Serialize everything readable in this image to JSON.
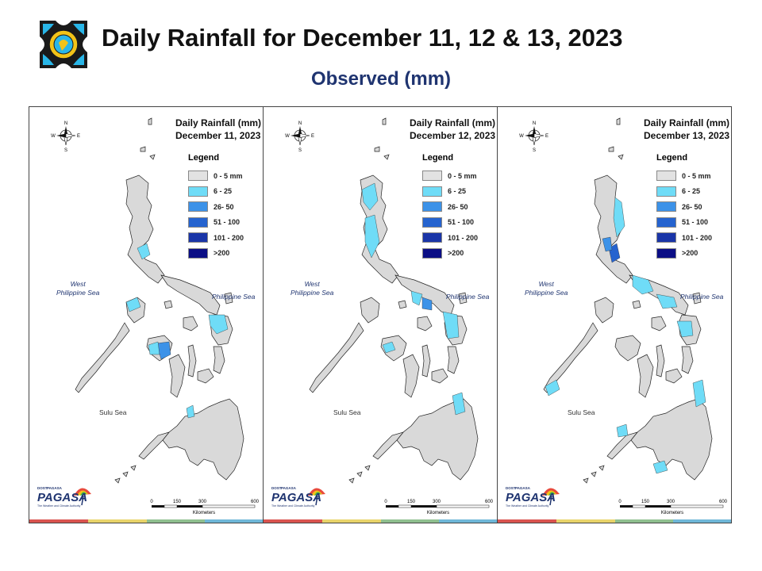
{
  "header": {
    "title": "Daily Rainfall for December 11, 12 & 13, 2023",
    "subtitle": "Observed (mm)"
  },
  "legend": {
    "title": "Legend",
    "classes": [
      {
        "label": "0 - 5 mm",
        "color": "#e2e2e2"
      },
      {
        "label": "6 - 25",
        "color": "#6fdcf7"
      },
      {
        "label": "26- 50",
        "color": "#3c92e8"
      },
      {
        "label": "51 - 100",
        "color": "#2563cf"
      },
      {
        "label": "101 - 200",
        "color": "#1a35a8"
      },
      {
        "label": ">200",
        "color": "#0b0e85"
      }
    ]
  },
  "panels": [
    {
      "heading": "Daily Rainfall (mm)",
      "date": "December 11, 2023"
    },
    {
      "heading": "Daily Rainfall (mm)",
      "date": "December 12, 2023"
    },
    {
      "heading": "Daily Rainfall (mm)",
      "date": "December 13, 2023"
    }
  ],
  "labels": {
    "west_sea": "West\nPhilippine Sea",
    "philippine_sea": "Philippine Sea",
    "sulu_sea": "Sulu Sea",
    "compass": {
      "n": "N",
      "s": "S",
      "e": "E",
      "w": "W"
    },
    "scale_ticks": [
      "0",
      "150",
      "300",
      "600"
    ],
    "scale_unit": "Kilometers",
    "brand_top": "DOST",
    "brand_small": "PAGASA",
    "brand_name": "PAGASA",
    "brand_tag": "The Weather and Climate Authority"
  },
  "colors": {
    "land": "#d9d9d9",
    "border": "#222222",
    "footer_bar": [
      "#d9534f",
      "#e8d36a",
      "#8fbf8f",
      "#6fb7d8"
    ]
  }
}
